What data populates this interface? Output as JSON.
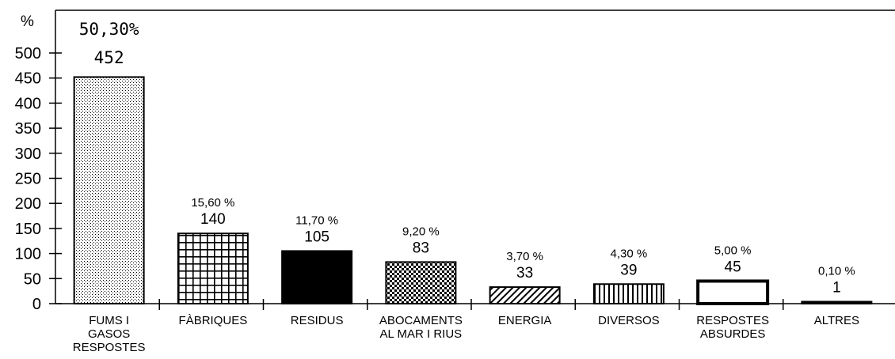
{
  "chart_data": {
    "type": "bar",
    "ylabel": "%",
    "ylim": [
      0,
      500
    ],
    "yticks": [
      0,
      50,
      100,
      150,
      200,
      250,
      300,
      350,
      400,
      450,
      500
    ],
    "grid": false,
    "bars": [
      {
        "label": [
          "FUMS I",
          "GASOS",
          "RESPOSTES"
        ],
        "value": 452,
        "percent": "50,30%",
        "pattern": "dots"
      },
      {
        "label": [
          "FÀBRIQUES"
        ],
        "value": 140,
        "percent": "15,60 %",
        "pattern": "grid"
      },
      {
        "label": [
          "RESIDUS"
        ],
        "value": 105,
        "percent": "11,70 %",
        "pattern": "solid"
      },
      {
        "label": [
          "ABOCAMENTS",
          "AL MAR I RIUS"
        ],
        "value": 83,
        "percent": "9,20 %",
        "pattern": "checker"
      },
      {
        "label": [
          "ENERGIA"
        ],
        "value": 33,
        "percent": "3,70 %",
        "pattern": "diagonal"
      },
      {
        "label": [
          "DIVERSOS"
        ],
        "value": 39,
        "percent": "4,30 %",
        "pattern": "vertical"
      },
      {
        "label": [
          "RESPOSTES",
          "ABSURDES"
        ],
        "value": 45,
        "percent": "5,00 %",
        "pattern": "empty"
      },
      {
        "label": [
          "ALTRES"
        ],
        "value": 1,
        "percent": "0,10 %",
        "pattern": "solid"
      }
    ]
  }
}
